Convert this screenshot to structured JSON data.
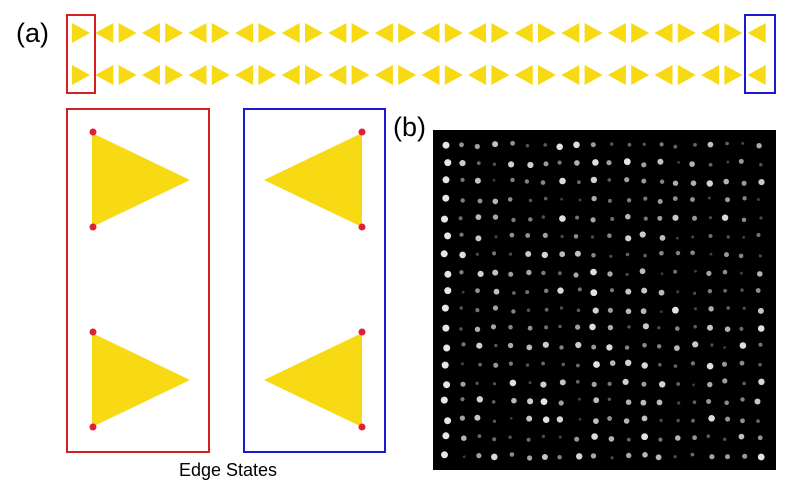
{
  "panel_a": {
    "label": "(a)",
    "caption": "Edge States"
  },
  "panel_b": {
    "label": "(b)"
  }
}
